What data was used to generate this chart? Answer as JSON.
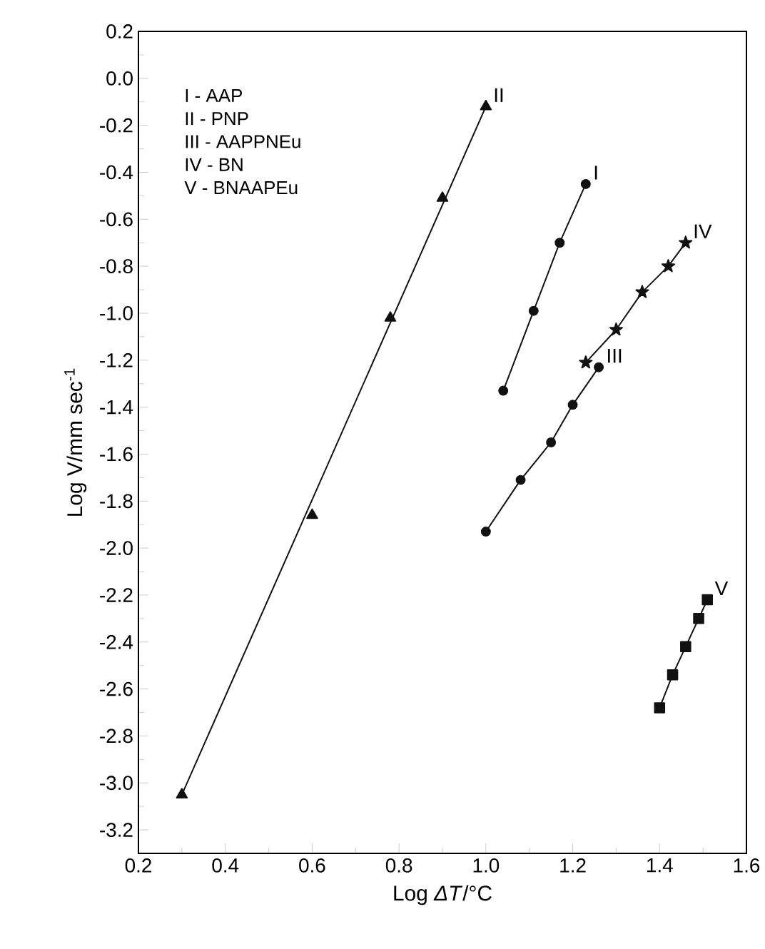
{
  "chart_data": {
    "type": "line",
    "xlabel": "Log *ΔT*/°C",
    "ylabel": "Log V/mm sec$^{-1}$",
    "xlim": [
      0.2,
      1.6
    ],
    "ylim": [
      -3.3,
      0.2
    ],
    "xticks": [
      {
        "value": 0.2,
        "label": "0.2"
      },
      {
        "value": 0.4,
        "label": "0.4"
      },
      {
        "value": 0.6,
        "label": "0.6"
      },
      {
        "value": 0.8,
        "label": "0.8"
      },
      {
        "value": 1.0,
        "label": "1.0"
      },
      {
        "value": 1.2,
        "label": "1.2"
      },
      {
        "value": 1.4,
        "label": "1.4"
      },
      {
        "value": 1.6,
        "label": "1.6"
      }
    ],
    "yticks": [
      {
        "value": -3.2,
        "label": "-3.2"
      },
      {
        "value": -3.0,
        "label": "-3.0"
      },
      {
        "value": -2.8,
        "label": "-2.8"
      },
      {
        "value": -2.6,
        "label": "-2.6"
      },
      {
        "value": -2.4,
        "label": "-2.4"
      },
      {
        "value": -2.2,
        "label": "-2.2"
      },
      {
        "value": -2.0,
        "label": "-2.0"
      },
      {
        "value": -1.8,
        "label": "-1.8"
      },
      {
        "value": -1.6,
        "label": "-1.6"
      },
      {
        "value": -1.4,
        "label": "-1.4"
      },
      {
        "value": -1.2,
        "label": "-1.2"
      },
      {
        "value": -1.0,
        "label": "-1.0"
      },
      {
        "value": -0.8,
        "label": "-0.8"
      },
      {
        "value": -0.6,
        "label": "-0.6"
      },
      {
        "value": -0.4,
        "label": "-0.4"
      },
      {
        "value": -0.2,
        "label": "-0.2"
      },
      {
        "value": 0.0,
        "label": "0.0"
      },
      {
        "value": 0.2,
        "label": "0.2"
      }
    ],
    "grid": false,
    "legend": false,
    "line_style": "solid",
    "series": [
      {
        "name": "I",
        "marker": "circle",
        "color": "#111111",
        "x": [
          1.04,
          1.11,
          1.17,
          1.23
        ],
        "values": [
          -1.33,
          -0.99,
          -0.7,
          -0.45
        ]
      },
      {
        "name": "II",
        "type": "scatter",
        "marker": "triangle",
        "color": "#111111",
        "x": [
          0.3,
          0.6,
          0.78,
          0.9,
          1.0
        ],
        "values": [
          -3.05,
          -1.86,
          -1.02,
          -0.51,
          -0.12
        ]
      },
      {
        "marker": "none",
        "color": "#111111",
        "x": [
          0.3,
          1.0
        ],
        "values": [
          -3.05,
          -0.12
        ]
      },
      {
        "name": "III",
        "marker": "circle",
        "color": "#111111",
        "x": [
          1.0,
          1.08,
          1.15,
          1.2,
          1.26
        ],
        "values": [
          -1.93,
          -1.71,
          -1.55,
          -1.39,
          -1.23
        ]
      },
      {
        "name": "IV",
        "marker": "star",
        "color": "#111111",
        "x": [
          1.23,
          1.3,
          1.36,
          1.42,
          1.46
        ],
        "values": [
          -1.21,
          -1.07,
          -0.91,
          -0.8,
          -0.7
        ]
      },
      {
        "name": "V",
        "marker": "square",
        "color": "#111111",
        "x": [
          1.4,
          1.43,
          1.46,
          1.49,
          1.51
        ],
        "values": [
          -2.68,
          -2.54,
          -2.42,
          -2.3,
          -2.22
        ]
      }
    ],
    "annotations": [
      "I - AAP",
      "II - PNP",
      "III - AAPPNEu",
      "IV - BN",
      "V - BNAAPEu"
    ]
  }
}
